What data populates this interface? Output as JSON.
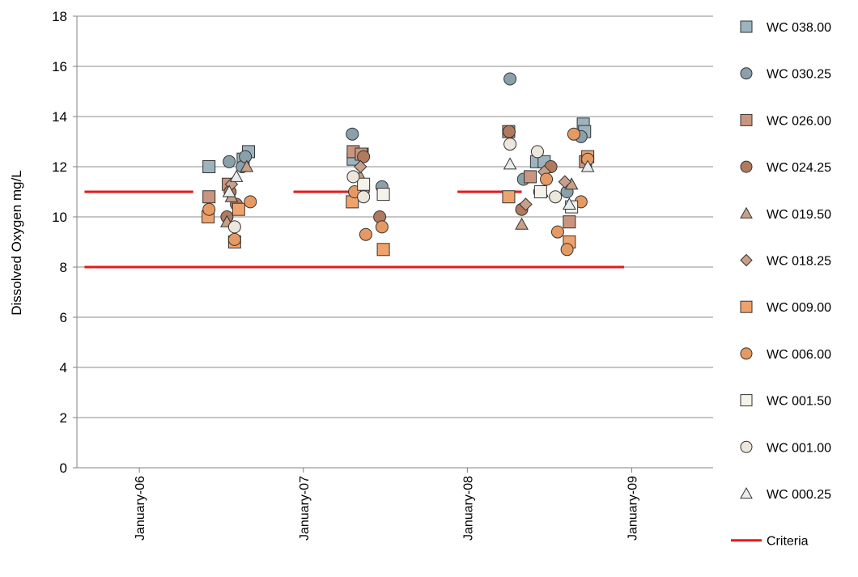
{
  "chart_data": {
    "type": "scatter",
    "title": "",
    "xlabel": "",
    "ylabel": "Dissolved Oxygen mg/L",
    "x_axis": {
      "type": "date",
      "min": "2005-08-15",
      "max": "2009-07-01",
      "ticks": [
        {
          "date": "2006-01-01",
          "label": "January-06"
        },
        {
          "date": "2007-01-01",
          "label": "January-07"
        },
        {
          "date": "2008-01-01",
          "label": "January-08"
        },
        {
          "date": "2009-01-01",
          "label": "January-09"
        }
      ]
    },
    "y_axis": {
      "min": 0,
      "max": 18,
      "ticks": [
        {
          "value": 0,
          "label": "0"
        },
        {
          "value": 2,
          "label": "2"
        },
        {
          "value": 4,
          "label": "4"
        },
        {
          "value": 6,
          "label": "6"
        },
        {
          "value": 8,
          "label": "8"
        },
        {
          "value": 10,
          "label": "10"
        },
        {
          "value": 12,
          "label": "12"
        },
        {
          "value": 14,
          "label": "14"
        },
        {
          "value": 16,
          "label": "16"
        },
        {
          "value": 18,
          "label": "18"
        }
      ]
    },
    "grid": {
      "horizontal": true,
      "vertical": false
    },
    "legend_position": "right",
    "series": [
      {
        "name": "WC 038.00",
        "marker": "square",
        "color": "#9db4be",
        "points": [
          {
            "x": "2006-06-05",
            "y": 12.0
          },
          {
            "x": "2006-08-20",
            "y": 12.3
          },
          {
            "x": "2006-09-01",
            "y": 12.6
          },
          {
            "x": "2007-04-22",
            "y": 12.3
          },
          {
            "x": "2007-05-12",
            "y": 12.5
          },
          {
            "x": "2008-06-03",
            "y": 12.2
          },
          {
            "x": "2008-06-20",
            "y": 12.2
          },
          {
            "x": "2008-09-15",
            "y": 13.7
          },
          {
            "x": "2008-09-18",
            "y": 13.4
          }
        ]
      },
      {
        "name": "WC 030.25",
        "marker": "circle",
        "color": "#8aa1ab",
        "points": [
          {
            "x": "2006-07-20",
            "y": 12.2
          },
          {
            "x": "2006-08-18",
            "y": 12.0
          },
          {
            "x": "2006-08-25",
            "y": 12.4
          },
          {
            "x": "2007-04-20",
            "y": 13.3
          },
          {
            "x": "2007-06-25",
            "y": 11.2
          },
          {
            "x": "2008-04-05",
            "y": 15.5
          },
          {
            "x": "2008-05-05",
            "y": 11.5
          },
          {
            "x": "2008-08-10",
            "y": 11.0
          },
          {
            "x": "2008-09-10",
            "y": 13.2
          }
        ]
      },
      {
        "name": "WC 026.00",
        "marker": "square",
        "color": "#c9957e",
        "points": [
          {
            "x": "2006-06-05",
            "y": 10.8
          },
          {
            "x": "2006-07-18",
            "y": 11.3
          },
          {
            "x": "2007-04-22",
            "y": 12.6
          },
          {
            "x": "2007-05-10",
            "y": 12.5
          },
          {
            "x": "2008-04-02",
            "y": 13.4
          },
          {
            "x": "2008-05-20",
            "y": 11.6
          },
          {
            "x": "2008-08-15",
            "y": 9.8
          },
          {
            "x": "2008-09-20",
            "y": 12.2
          }
        ]
      },
      {
        "name": "WC 024.25",
        "marker": "circle",
        "color": "#b07a5e",
        "points": [
          {
            "x": "2006-07-15",
            "y": 10.0
          },
          {
            "x": "2006-07-22",
            "y": 11.0
          },
          {
            "x": "2006-08-05",
            "y": 10.5
          },
          {
            "x": "2007-05-15",
            "y": 12.4
          },
          {
            "x": "2007-06-20",
            "y": 10.0
          },
          {
            "x": "2008-04-03",
            "y": 13.4
          },
          {
            "x": "2008-05-01",
            "y": 10.3
          },
          {
            "x": "2008-06-10",
            "y": 11.0
          },
          {
            "x": "2008-07-05",
            "y": 12.0
          }
        ]
      },
      {
        "name": "WC 019.50",
        "marker": "triangle",
        "color": "#c7a088",
        "points": [
          {
            "x": "2006-07-15",
            "y": 9.8
          },
          {
            "x": "2006-07-25",
            "y": 10.8
          },
          {
            "x": "2006-08-28",
            "y": 12.0
          },
          {
            "x": "2007-05-08",
            "y": 11.6
          },
          {
            "x": "2008-05-01",
            "y": 9.7
          },
          {
            "x": "2008-06-15",
            "y": 11.0
          },
          {
            "x": "2008-08-20",
            "y": 11.3
          }
        ]
      },
      {
        "name": "WC 018.25",
        "marker": "diamond",
        "color": "#c8a08a",
        "points": [
          {
            "x": "2006-07-25",
            "y": 11.3
          },
          {
            "x": "2007-05-08",
            "y": 12.0
          },
          {
            "x": "2007-05-15",
            "y": 11.0
          },
          {
            "x": "2008-05-10",
            "y": 10.5
          },
          {
            "x": "2008-06-20",
            "y": 11.8
          },
          {
            "x": "2008-08-05",
            "y": 11.4
          }
        ]
      },
      {
        "name": "WC 009.00",
        "marker": "square",
        "color": "#efa36c",
        "points": [
          {
            "x": "2006-06-03",
            "y": 10.0
          },
          {
            "x": "2006-08-01",
            "y": 9.0
          },
          {
            "x": "2006-08-10",
            "y": 10.3
          },
          {
            "x": "2007-04-20",
            "y": 10.6
          },
          {
            "x": "2007-06-28",
            "y": 8.7
          },
          {
            "x": "2008-04-02",
            "y": 10.8
          },
          {
            "x": "2008-08-15",
            "y": 9.0
          },
          {
            "x": "2008-09-25",
            "y": 12.4
          }
        ]
      },
      {
        "name": "WC 006.00",
        "marker": "circle",
        "color": "#e59a63",
        "points": [
          {
            "x": "2006-06-05",
            "y": 10.3
          },
          {
            "x": "2006-08-01",
            "y": 9.1
          },
          {
            "x": "2006-09-05",
            "y": 10.6
          },
          {
            "x": "2007-04-25",
            "y": 11.0
          },
          {
            "x": "2007-05-20",
            "y": 9.3
          },
          {
            "x": "2007-06-25",
            "y": 9.6
          },
          {
            "x": "2008-06-25",
            "y": 11.5
          },
          {
            "x": "2008-07-20",
            "y": 9.4
          },
          {
            "x": "2008-08-10",
            "y": 8.7
          },
          {
            "x": "2008-08-25",
            "y": 13.3
          },
          {
            "x": "2008-09-10",
            "y": 10.6
          },
          {
            "x": "2008-09-25",
            "y": 12.3
          }
        ]
      },
      {
        "name": "WC 001.50",
        "marker": "square",
        "color": "#f5f2ea",
        "points": [
          {
            "x": "2007-05-15",
            "y": 11.3
          },
          {
            "x": "2007-06-28",
            "y": 10.9
          },
          {
            "x": "2008-06-12",
            "y": 11.0
          },
          {
            "x": "2008-08-20",
            "y": 10.4
          }
        ]
      },
      {
        "name": "WC 001.00",
        "marker": "circle",
        "color": "#ede6dc",
        "points": [
          {
            "x": "2006-08-01",
            "y": 9.6
          },
          {
            "x": "2007-04-22",
            "y": 11.6
          },
          {
            "x": "2007-05-15",
            "y": 10.8
          },
          {
            "x": "2008-04-05",
            "y": 12.9
          },
          {
            "x": "2008-06-05",
            "y": 12.6
          },
          {
            "x": "2008-07-15",
            "y": 10.8
          }
        ]
      },
      {
        "name": "WC 000.25",
        "marker": "triangle",
        "color": "#e8ecee",
        "points": [
          {
            "x": "2006-07-20",
            "y": 11.0
          },
          {
            "x": "2006-08-05",
            "y": 11.6
          },
          {
            "x": "2008-04-05",
            "y": 12.1
          },
          {
            "x": "2008-08-15",
            "y": 10.5
          },
          {
            "x": "2008-09-25",
            "y": 12.0
          }
        ]
      },
      {
        "name": "Criteria",
        "marker": "line",
        "color": "#e31a1c",
        "segments": [
          {
            "x1": "2005-09-01",
            "x2": "2006-05-01",
            "y": 11
          },
          {
            "x1": "2006-12-10",
            "x2": "2007-05-01",
            "y": 11
          },
          {
            "x1": "2007-12-10",
            "x2": "2008-05-01",
            "y": 11
          },
          {
            "x1": "2005-09-01",
            "x2": "2008-12-15",
            "y": 8
          }
        ]
      }
    ]
  }
}
